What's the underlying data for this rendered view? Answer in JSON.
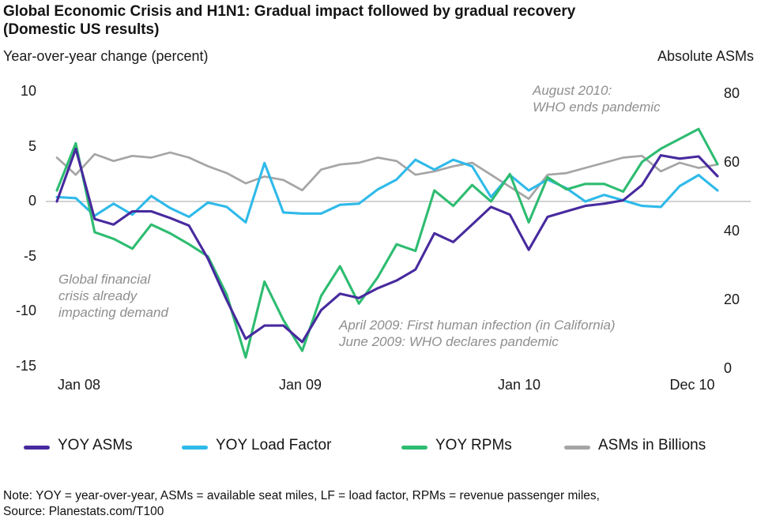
{
  "header": {
    "title_line1": "Global Economic Crisis and H1N1: Gradual impact followed by gradual recovery",
    "title_line2": "(Domestic US results)",
    "left_axis_title": "Year-over-year change (percent)",
    "right_axis_title": "Absolute ASMs"
  },
  "chart_data": {
    "type": "line",
    "title": "Global Economic Crisis and H1N1: Gradual impact followed by gradual recovery (Domestic US results)",
    "x_axis": {
      "shown_labels": [
        "Jan 08",
        "Jan 09",
        "Jan 10",
        "Dec 10"
      ],
      "shown_label_month_index": [
        0,
        12,
        24,
        35
      ],
      "categories": [
        "Jan 08",
        "Feb 08",
        "Mar 08",
        "Apr 08",
        "May 08",
        "Jun 08",
        "Jul 08",
        "Aug 08",
        "Sep 08",
        "Oct 08",
        "Nov 08",
        "Dec 08",
        "Jan 09",
        "Feb 09",
        "Mar 09",
        "Apr 09",
        "May 09",
        "Jun 09",
        "Jul 09",
        "Aug 09",
        "Sep 09",
        "Oct 09",
        "Nov 09",
        "Dec 09",
        "Jan 10",
        "Feb 10",
        "Mar 10",
        "Apr 10",
        "May 10",
        "Jun 10",
        "Jul 10",
        "Aug 10",
        "Sep 10",
        "Oct 10",
        "Nov 10",
        "Dec 10"
      ]
    },
    "left_axis": {
      "title": "Year-over-year change (percent)",
      "ticks": [
        10,
        5,
        0,
        -5,
        -10,
        -15
      ],
      "range": [
        -16.5,
        11
      ]
    },
    "right_axis": {
      "title": "Absolute ASMs",
      "ticks": [
        80,
        60,
        40,
        20,
        0
      ],
      "range": [
        0,
        84
      ]
    },
    "grid": false,
    "zero_line": true,
    "legend_position": "bottom",
    "series": [
      {
        "name": "YOY ASMs",
        "axis": "left",
        "color": "#472a9e",
        "values": [
          0.0,
          4.8,
          -1.6,
          -2.1,
          -0.9,
          -0.9,
          -1.5,
          -2.2,
          -5.2,
          -9.0,
          -12.5,
          -11.3,
          -11.3,
          -12.8,
          -9.9,
          -8.4,
          -8.8,
          -7.9,
          -7.2,
          -6.2,
          -2.9,
          -3.7,
          -2.1,
          -0.5,
          -1.2,
          -4.4,
          -1.4,
          -0.9,
          -0.4,
          -0.2,
          0.1,
          1.5,
          4.2,
          3.9,
          4.1,
          2.3
        ]
      },
      {
        "name": "YOY Load Factor",
        "axis": "left",
        "color": "#2fbae9",
        "values": [
          0.4,
          0.3,
          -1.3,
          -0.2,
          -1.2,
          0.5,
          -0.6,
          -1.4,
          -0.1,
          -0.5,
          -1.9,
          3.5,
          -1.0,
          -1.1,
          -1.1,
          -0.3,
          -0.2,
          1.1,
          2.0,
          3.8,
          2.9,
          3.8,
          3.2,
          0.4,
          2.4,
          1.0,
          2.0,
          1.2,
          0.0,
          0.6,
          0.1,
          -0.4,
          -0.5,
          1.4,
          2.4,
          1.0
        ]
      },
      {
        "name": "YOY RPMs",
        "axis": "left",
        "color": "#2ebc71",
        "values": [
          1.0,
          5.3,
          -2.8,
          -3.4,
          -4.3,
          -2.1,
          -2.9,
          -3.9,
          -5.0,
          -8.5,
          -14.2,
          -7.3,
          -10.8,
          -13.6,
          -8.6,
          -5.9,
          -9.3,
          -6.9,
          -3.9,
          -4.5,
          1.0,
          -0.4,
          1.5,
          0.0,
          2.5,
          -1.9,
          2.2,
          1.1,
          1.6,
          1.6,
          0.9,
          3.6,
          4.8,
          5.7,
          6.6,
          3.4
        ]
      },
      {
        "name": "ASMs in Billions",
        "axis": "right",
        "color": "#a5a5a5",
        "values": [
          61.5,
          56.5,
          62.5,
          60.5,
          62.0,
          61.5,
          63.0,
          61.5,
          59.0,
          57.0,
          54.0,
          56.0,
          55.0,
          52.0,
          58.0,
          59.5,
          60.0,
          61.5,
          60.5,
          56.5,
          57.5,
          59.0,
          60.0,
          56.5,
          53.0,
          49.5,
          56.5,
          57.0,
          58.5,
          60.0,
          61.5,
          62.0,
          57.5,
          60.0,
          58.5,
          59.5
        ]
      }
    ],
    "annotations": [
      {
        "id": "gfc",
        "lines": [
          "Global financial",
          "crisis already",
          "impacting demand"
        ]
      },
      {
        "id": "h1n1",
        "lines": [
          "April 2009: First human infection (in California)",
          "June 2009: WHO declares pandemic"
        ]
      },
      {
        "id": "whoend",
        "lines": [
          "August 2010:",
          "WHO ends pandemic"
        ]
      }
    ]
  },
  "legend": {
    "items": [
      {
        "label": "YOY ASMs",
        "color": "#472a9e"
      },
      {
        "label": "YOY Load Factor",
        "color": "#2fbae9"
      },
      {
        "label": "YOY RPMs",
        "color": "#2ebc71"
      },
      {
        "label": "ASMs in Billions",
        "color": "#a5a5a5"
      }
    ]
  },
  "footer": {
    "note": "Note:  YOY = year-over-year, ASMs = available seat miles, LF =  load factor, RPMs = revenue passenger miles,",
    "source": "Source: Planestats.com/T100"
  }
}
